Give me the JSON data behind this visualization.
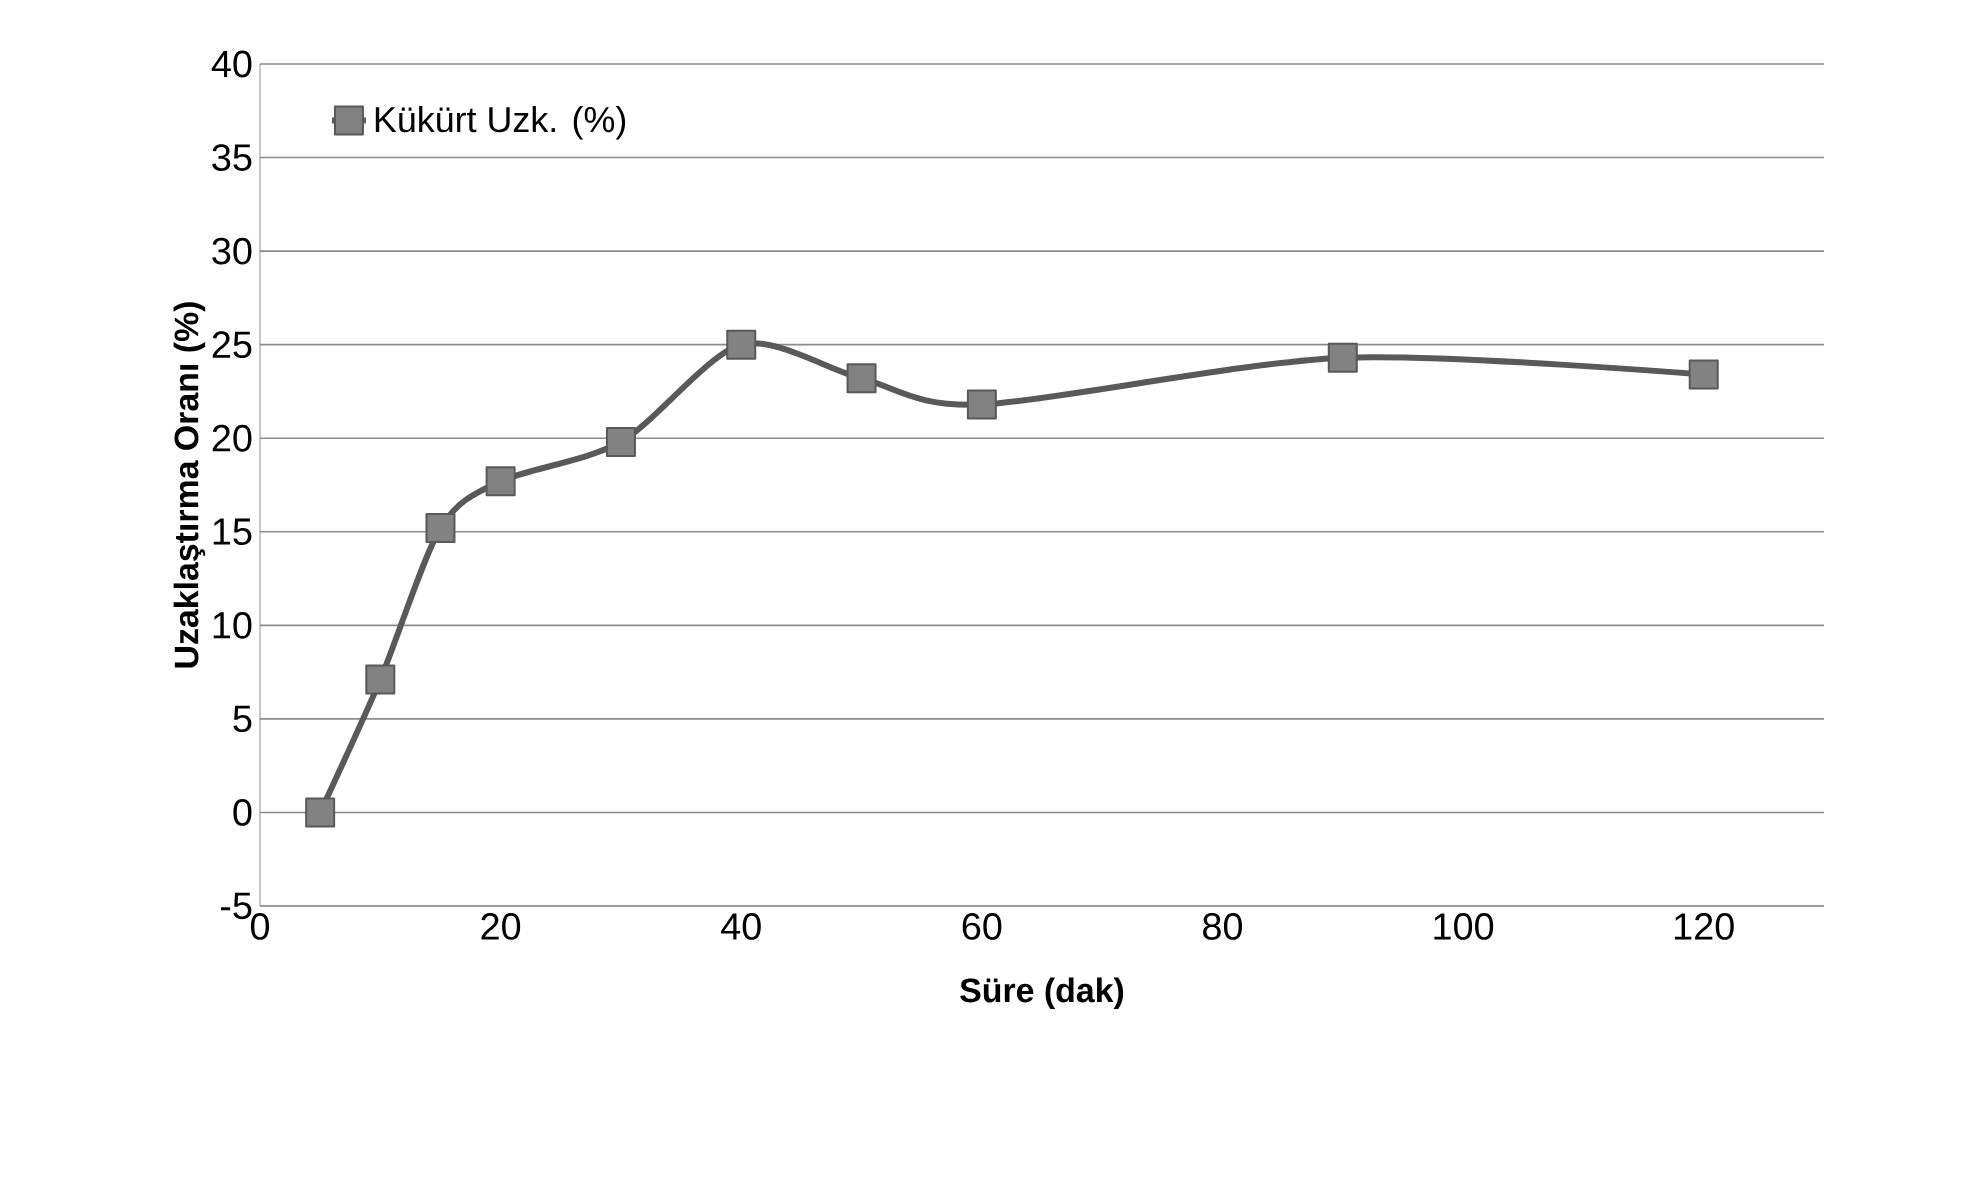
{
  "chart_data": {
    "type": "line",
    "xlabel": "Süre (dak)",
    "ylabel": "Uzaklaştırma Oranı (%)",
    "x": [
      5,
      10,
      15,
      20,
      30,
      40,
      50,
      60,
      90,
      120
    ],
    "series": [
      {
        "name": "Kükürt Uzk. (%)",
        "color": "#595959",
        "values": [
          0,
          7.1,
          15.2,
          17.7,
          19.8,
          25.0,
          23.2,
          21.8,
          24.3,
          23.4
        ]
      }
    ],
    "xlim": [
      0,
      130
    ],
    "ylim": [
      -5,
      40
    ],
    "xticks": [
      0,
      20,
      40,
      60,
      80,
      100,
      120
    ],
    "yticks": [
      -5,
      0,
      5,
      10,
      15,
      20,
      25,
      30,
      35,
      40
    ],
    "grid": "y",
    "legend": "top left",
    "marker": "square",
    "line_style": "solid"
  }
}
